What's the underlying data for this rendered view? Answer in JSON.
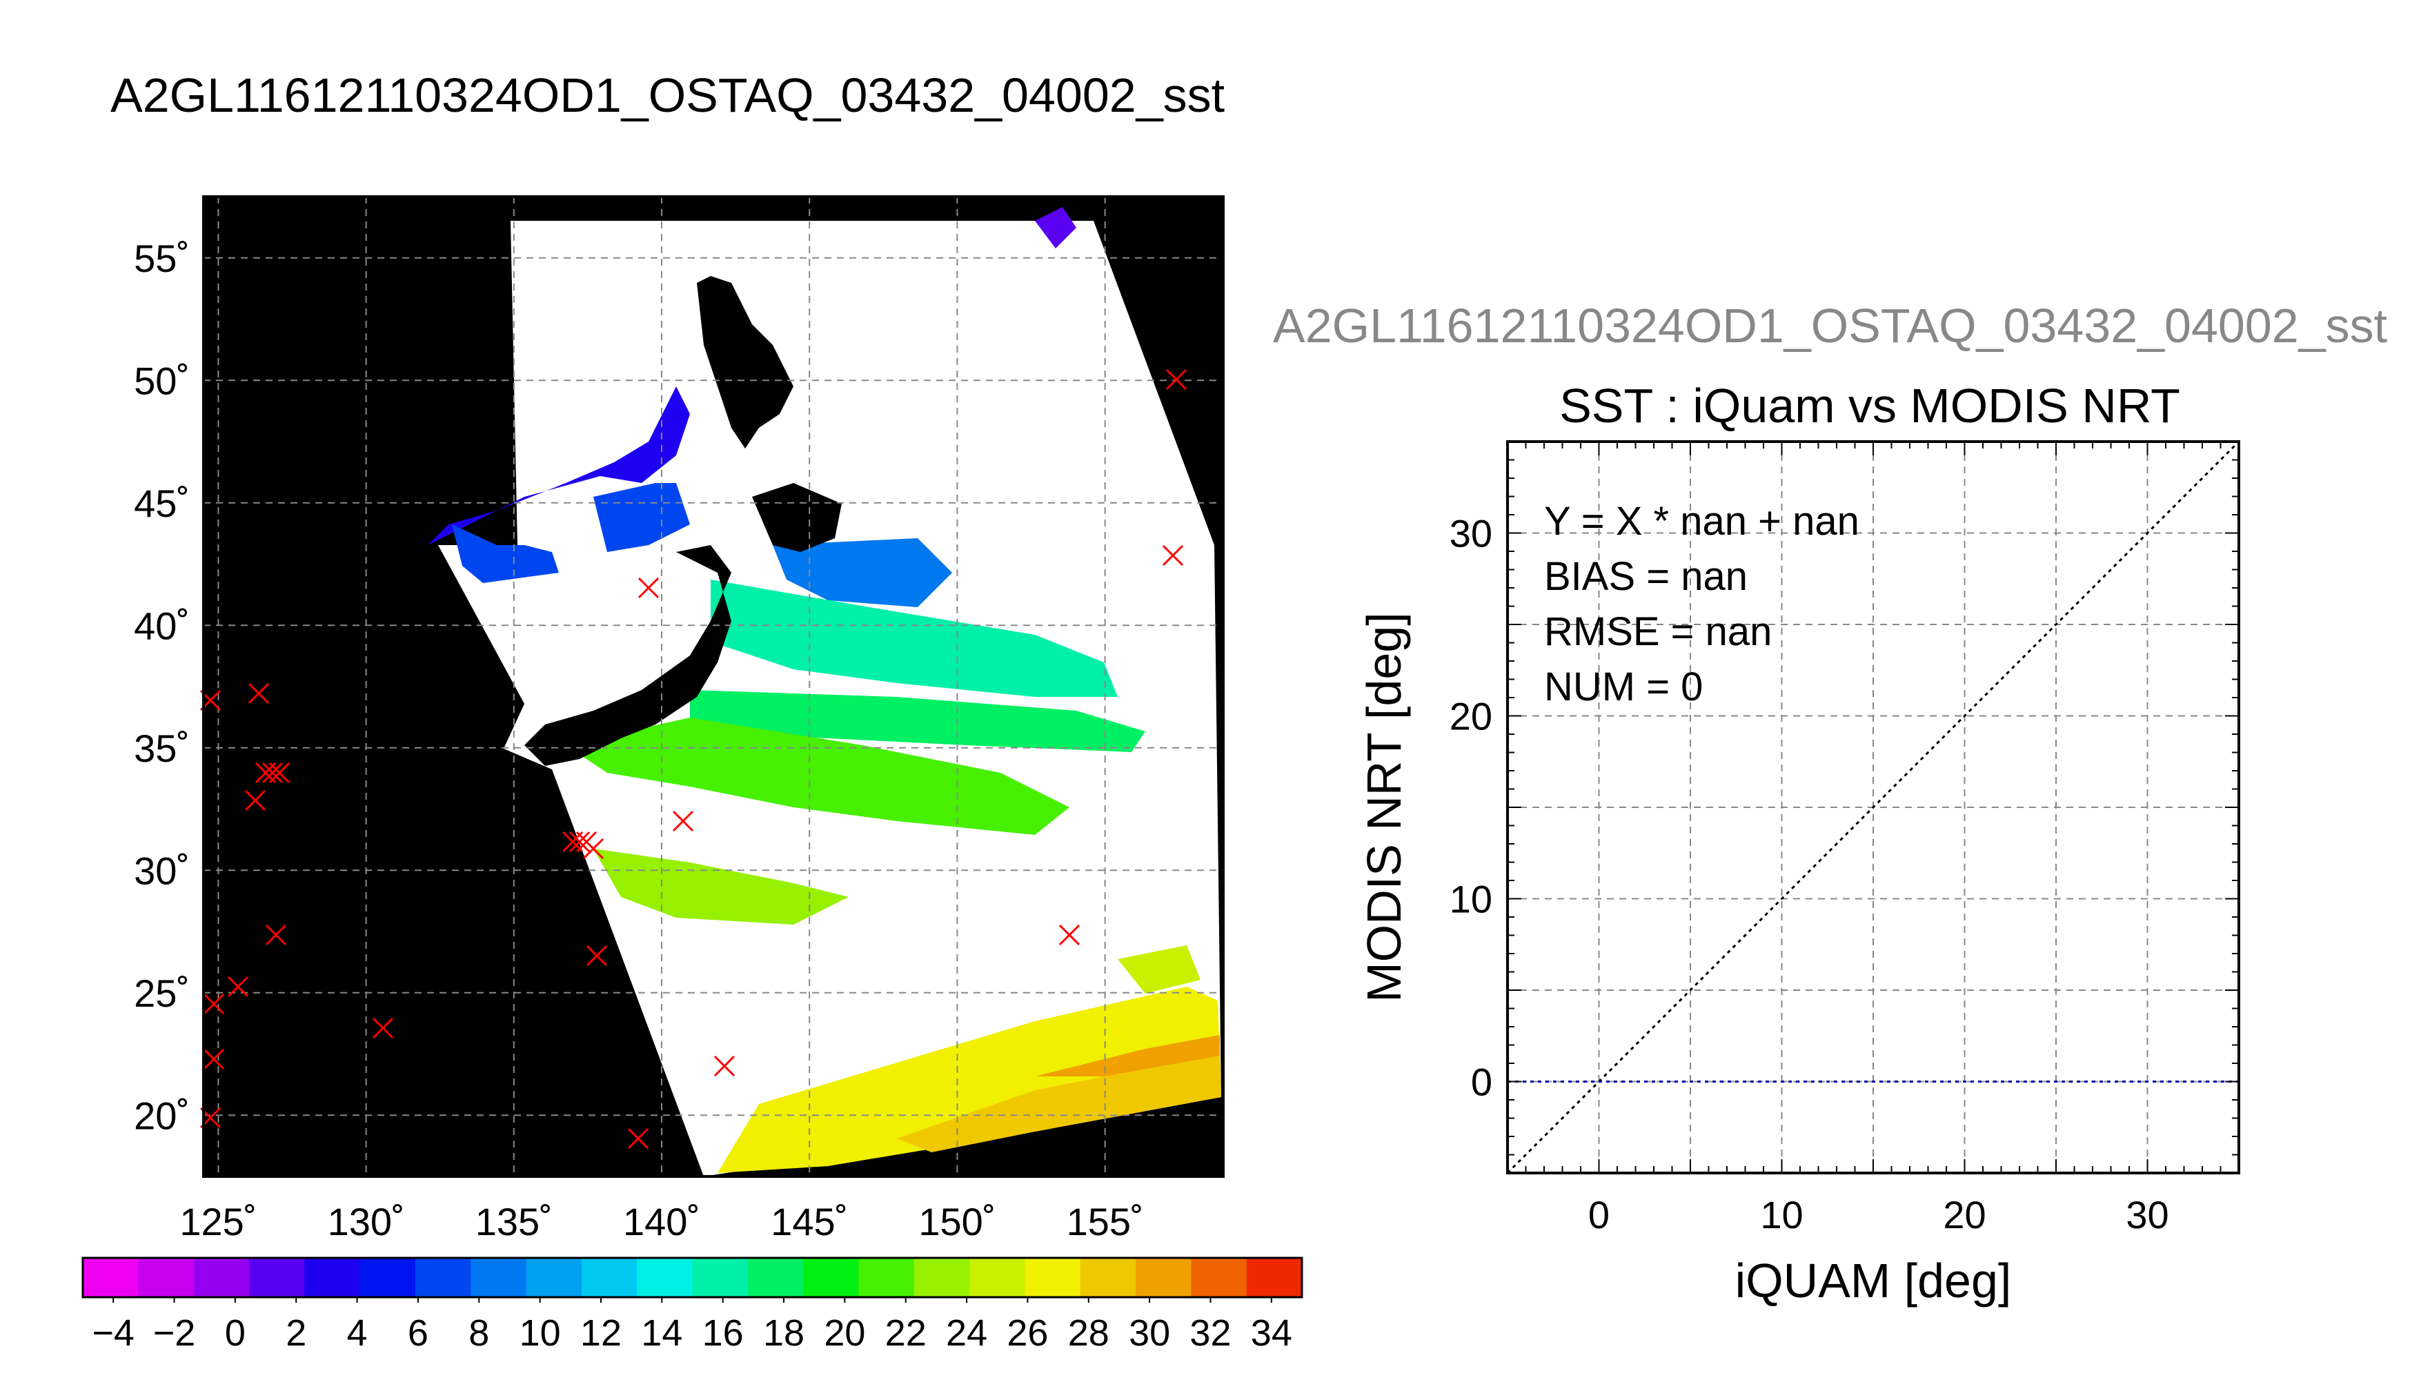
{
  "title": "A2GL11612110324OD1_OSTAQ_03432_04002_sst",
  "scatter_file_title": "A2GL11612110324OD1_OSTAQ_03432_04002_sst",
  "map": {
    "lon_ticks": [
      125,
      130,
      135,
      140,
      145,
      150,
      155
    ],
    "lat_ticks": [
      20,
      25,
      30,
      35,
      40,
      45,
      50,
      55
    ],
    "lon_labels": [
      "125˚",
      "130˚",
      "135˚",
      "140˚",
      "145˚",
      "150˚",
      "155˚"
    ],
    "lat_labels": [
      "20˚",
      "25˚",
      "30˚",
      "35˚",
      "40˚",
      "45˚",
      "50˚",
      "55˚"
    ],
    "lon_range": [
      124.5,
      159.0
    ],
    "lat_range": [
      17.5,
      57.5
    ],
    "marker_color": "#ff0000",
    "colorbar": {
      "labels": [
        "−4",
        "−2",
        "0",
        "2",
        "4",
        "6",
        "8",
        "10",
        "12",
        "14",
        "16",
        "18",
        "20",
        "22",
        "24",
        "26",
        "28",
        "30",
        "32",
        "34"
      ],
      "range": [
        -5,
        35
      ],
      "colors": [
        "#f000f0",
        "#c800f0",
        "#9600f0",
        "#5a00f0",
        "#1e00f0",
        "#0014f0",
        "#0046f0",
        "#0078f0",
        "#00a0f0",
        "#00c8f0",
        "#00f0e6",
        "#00f0aa",
        "#00f064",
        "#00f014",
        "#46f000",
        "#96f000",
        "#c8f000",
        "#f0f000",
        "#f0c800",
        "#f0a000",
        "#f06400",
        "#f02800"
      ]
    }
  },
  "chart_data": {
    "type": "scatter",
    "title": "SST : iQuam vs MODIS NRT",
    "xlabel": "iQUAM [deg]",
    "ylabel": "MODIS NRT [deg]",
    "xlim": [
      -5,
      35
    ],
    "ylim": [
      -5,
      35
    ],
    "xticks": [
      0,
      10,
      20,
      30
    ],
    "yticks": [
      0,
      10,
      20,
      30
    ],
    "grid": true,
    "series": [],
    "identity_line": {
      "x": [
        -5,
        35
      ],
      "y": [
        -5,
        35
      ],
      "color": "#000000",
      "style": "dotted"
    },
    "zero_line": {
      "y": 0,
      "color": "#0000aa",
      "style": "dotted"
    },
    "annotations": [
      "Y = X * nan + nan",
      "BIAS = nan",
      "RMSE = nan",
      "NUM = 0"
    ]
  }
}
